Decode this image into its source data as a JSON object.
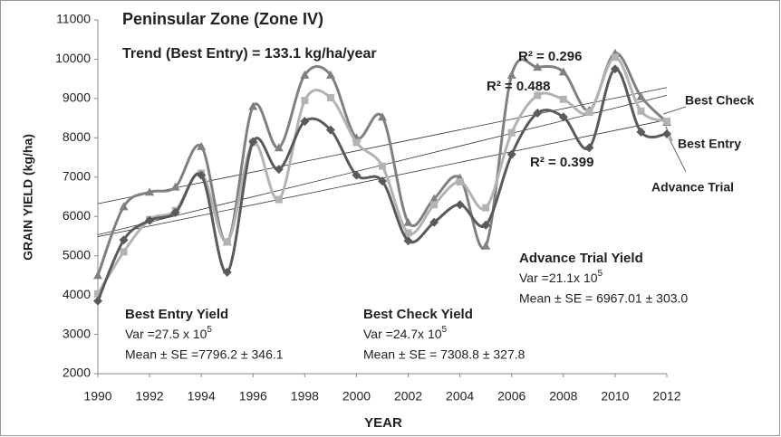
{
  "chart_data": {
    "type": "line",
    "title": "Peninsular Zone (Zone IV)",
    "x_label": "YEAR",
    "y_label": "GRAIN YIELD (kg/ha)",
    "x": [
      1990,
      1991,
      1992,
      1993,
      1994,
      1995,
      1996,
      1997,
      1998,
      1999,
      2000,
      2001,
      2002,
      2003,
      2004,
      2005,
      2006,
      2007,
      2008,
      2009,
      2010,
      2011,
      2012
    ],
    "series": [
      {
        "name": "Best Entry",
        "color": "#808080",
        "marker": "triangle",
        "values": [
          4500,
          6250,
          6620,
          6750,
          7780,
          5350,
          8800,
          7750,
          9600,
          9600,
          8000,
          8530,
          5850,
          6450,
          6980,
          5250,
          9600,
          9800,
          9680,
          8700,
          10150,
          9050,
          8400
        ]
      },
      {
        "name": "Best Check",
        "color": "#b3b3b3",
        "marker": "square",
        "values": [
          4030,
          5100,
          5920,
          6150,
          7100,
          5350,
          7880,
          6430,
          8950,
          9020,
          7880,
          7280,
          5580,
          6300,
          6880,
          6220,
          8130,
          9080,
          8980,
          8650,
          10050,
          8680,
          8420
        ]
      },
      {
        "name": "Advance Trial",
        "color": "#5a5a5a",
        "marker": "diamond",
        "values": [
          3850,
          5400,
          5900,
          6100,
          7050,
          4580,
          7900,
          7200,
          8420,
          8200,
          7050,
          6900,
          5380,
          5850,
          6300,
          5780,
          7580,
          8630,
          8530,
          7750,
          9750,
          8150,
          8100
        ]
      }
    ],
    "trendlines": true,
    "xlim": [
      1990,
      2012
    ],
    "xticks": [
      1990,
      1992,
      1994,
      1996,
      1998,
      2000,
      2002,
      2004,
      2006,
      2008,
      2010,
      2012
    ],
    "ylim": [
      2000,
      11000
    ],
    "yticks": [
      2000,
      3000,
      4000,
      5000,
      6000,
      7000,
      8000,
      9000,
      10000,
      11000
    ],
    "grid": false,
    "trend_text": "Trend (Best Entry) = 133.1 kg/ha/year",
    "r2_labels": [
      "R² = 0.296",
      "R² = 0.488",
      "R² = 0.399"
    ],
    "stats": [
      {
        "title": "Best Entry Yield",
        "var": "Var =27.5 x 10",
        "var_exp": "5",
        "mean": "Mean  ± SE =7796.2 ± 346.1"
      },
      {
        "title": "Best Check  Yield",
        "var": "Var =24.7x 10",
        "var_exp": "5",
        "mean": "Mean  ± SE = 7308.8 ± 327.8"
      },
      {
        "title": "Advance Trial Yield",
        "var": "Var =21.1x 10",
        "var_exp": "5",
        "mean": "Mean  ± SE = 6967.01 ± 303.0"
      }
    ]
  }
}
